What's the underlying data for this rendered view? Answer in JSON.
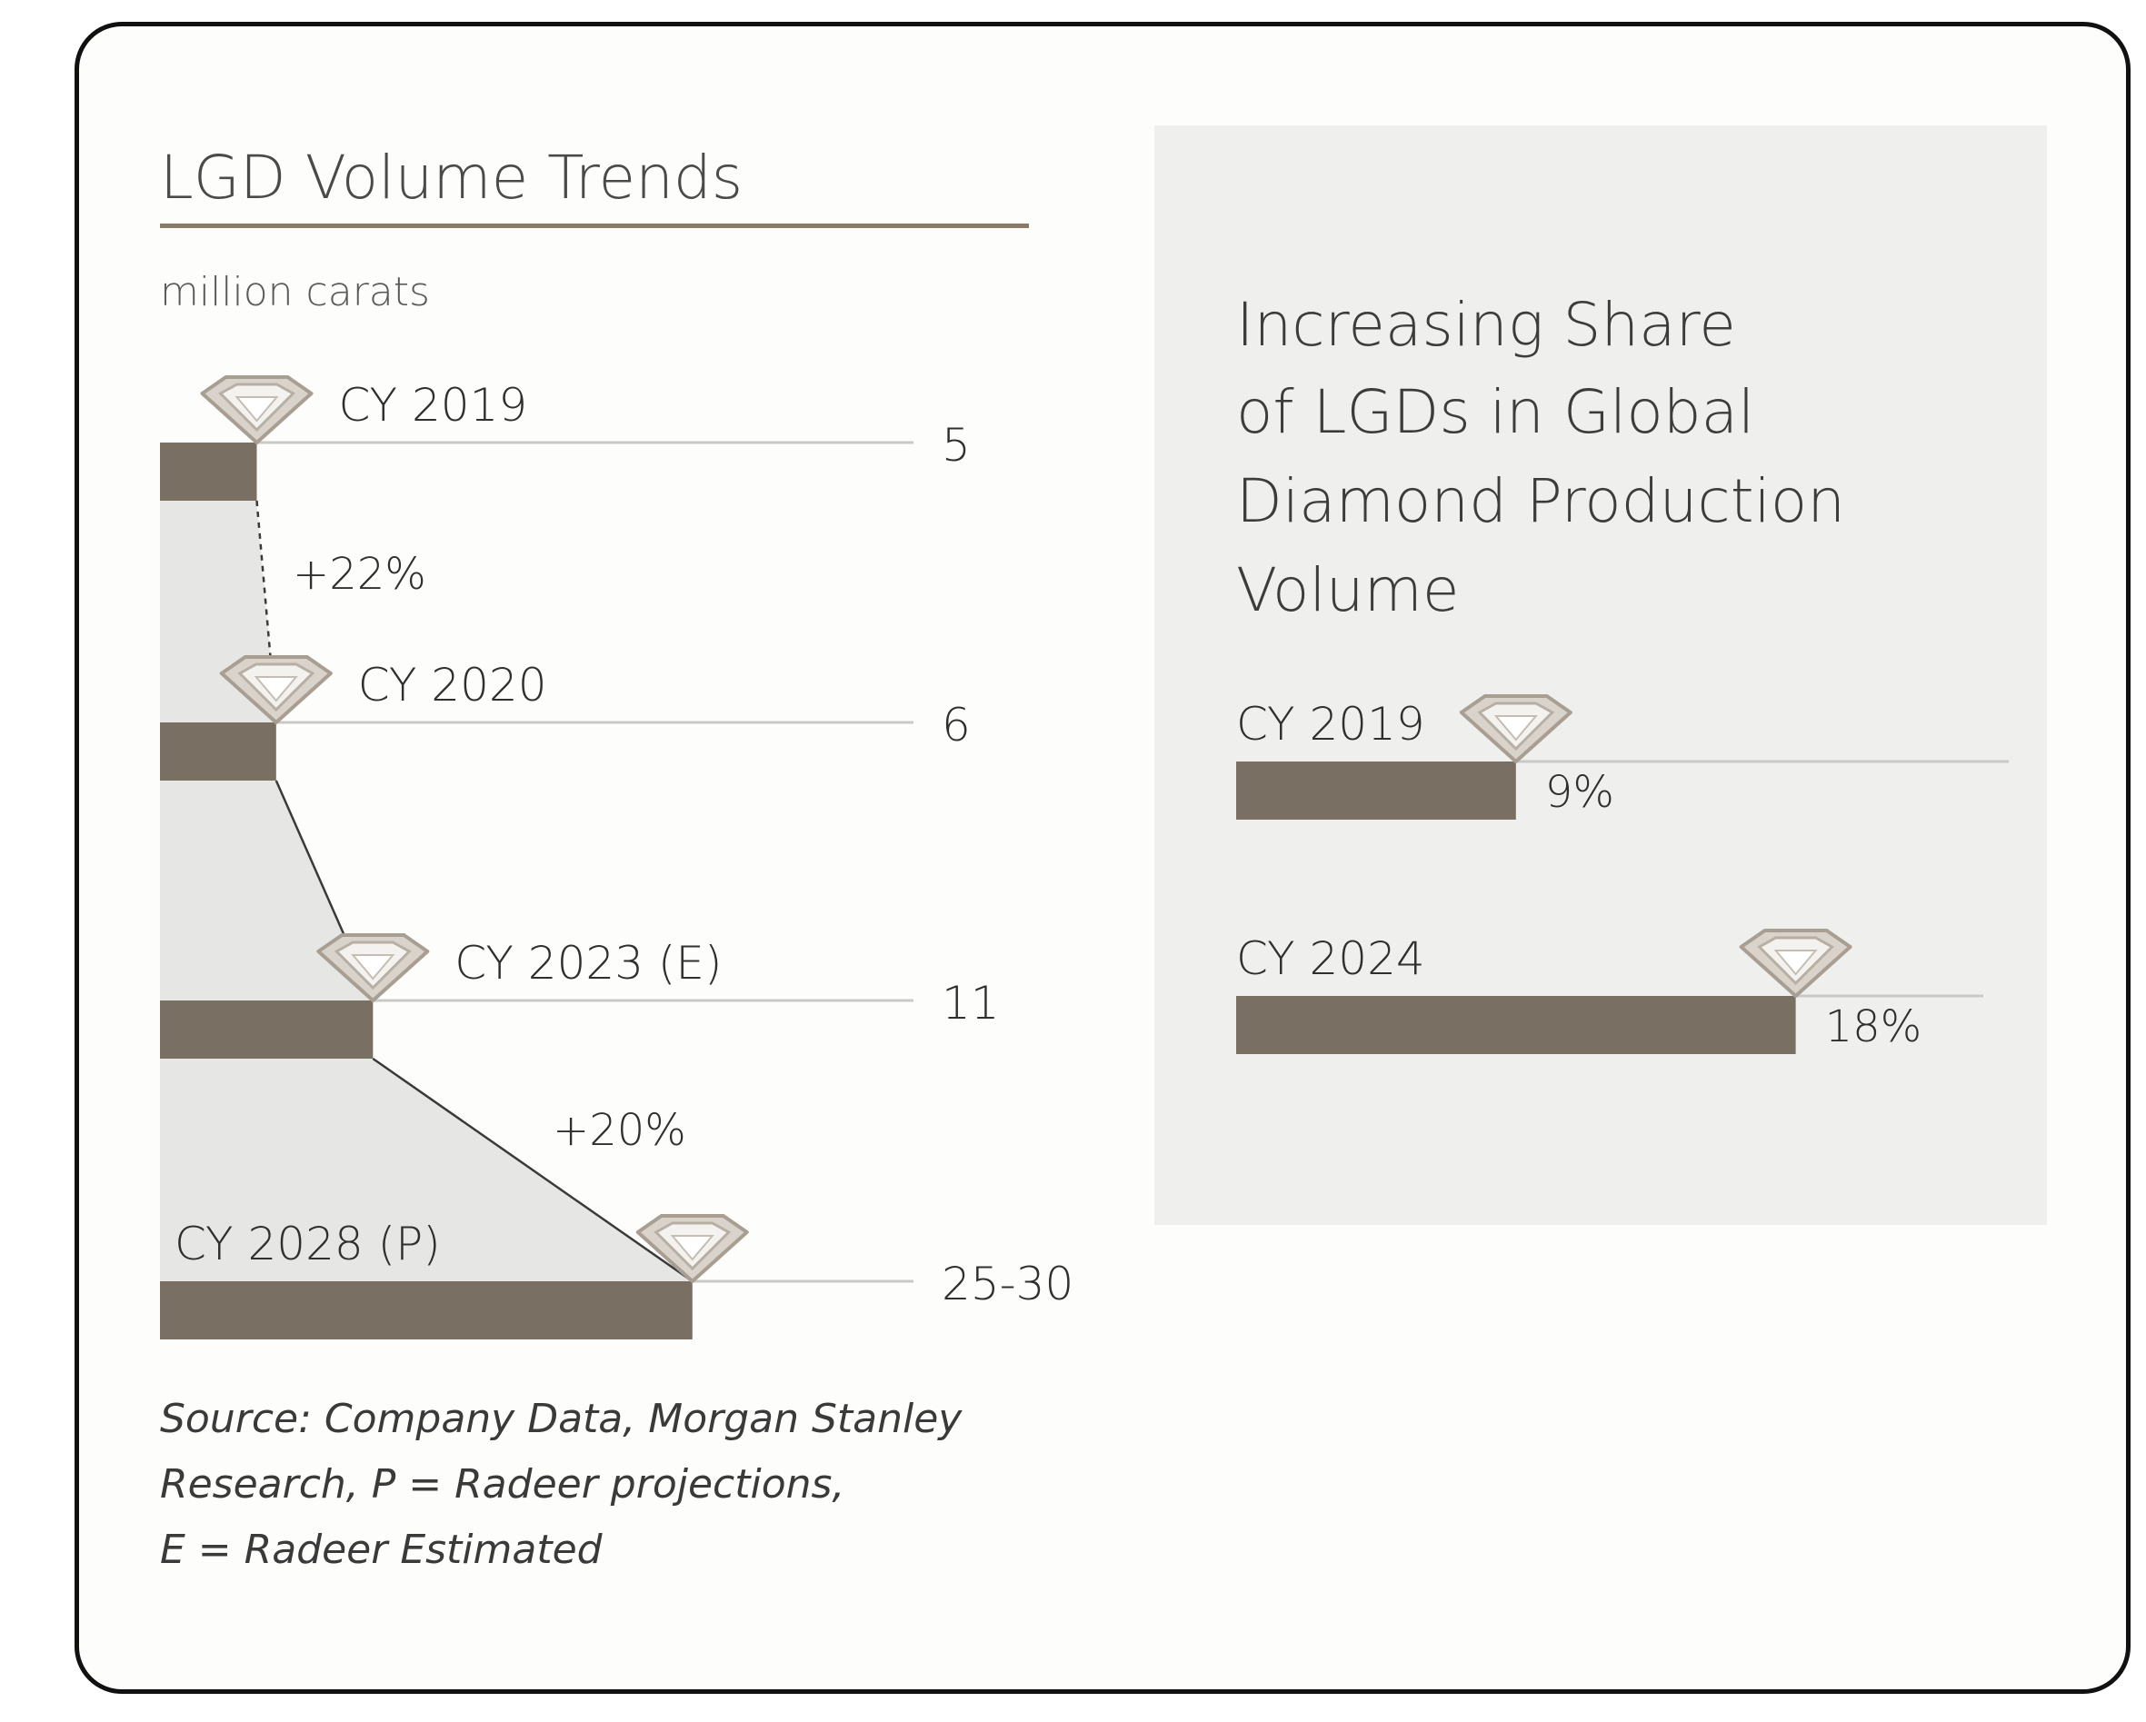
{
  "colors": {
    "bar": "#7a6f63",
    "underline": "#8a7a6a",
    "band": "#e6e6e4",
    "panel": "#efefed",
    "line": "#c9c9c6",
    "diamond": "#b8b0a6"
  },
  "chart_data": [
    {
      "type": "bar",
      "title": "LGD Volume Trends",
      "unit": "million carats",
      "categories": [
        "CY 2019",
        "CY 2020",
        "CY 2023 (E)",
        "CY 2028 (P)"
      ],
      "values": [
        5,
        6,
        11,
        27.5
      ],
      "value_labels": [
        "5",
        "6",
        "11",
        "25-30"
      ],
      "growth_annotations": [
        {
          "from": "CY 2019",
          "to": "CY 2020",
          "label": "+22%"
        },
        {
          "from": "CY 2023 (E)",
          "to": "CY 2028 (P)",
          "label": "+20%"
        }
      ],
      "source_lines": [
        "Source: Company Data, Morgan Stanley",
        "Research, P = Radeer projections,",
        "E = Radeer Estimated"
      ]
    },
    {
      "type": "bar",
      "title_lines": [
        "Increasing Share",
        "of LGDs in Global",
        "Diamond Production",
        "Volume"
      ],
      "categories": [
        "CY 2019",
        "CY 2024"
      ],
      "values": [
        9,
        18
      ],
      "value_labels": [
        "9%",
        "18%"
      ]
    }
  ]
}
